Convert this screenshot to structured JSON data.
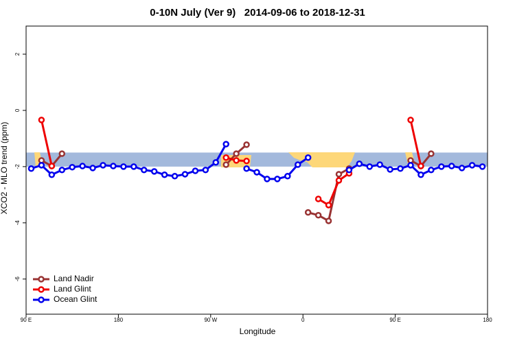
{
  "chart_data": {
    "type": "line",
    "title": "0-10N July (Ver 9)   2014-09-06 to 2018-12-31",
    "x_label": "Longitude",
    "y_label": "XCO2 - MLO trend (ppm)",
    "x": [
      95,
      105,
      115,
      125,
      135,
      145,
      155,
      165,
      175,
      185,
      195,
      205,
      215,
      225,
      235,
      245,
      255,
      265,
      275,
      285,
      295,
      305,
      315,
      325,
      335,
      345,
      355,
      365,
      375,
      385,
      395,
      405,
      415,
      425,
      435,
      445,
      455,
      465,
      475,
      485,
      495,
      505,
      515,
      525,
      535
    ],
    "xlim": [
      90,
      540
    ],
    "xticks": [
      {
        "value": 90,
        "label": "90 E"
      },
      180,
      {
        "value": 270,
        "label": "90 W"
      },
      {
        "value": 360,
        "label": "0"
      },
      {
        "value": 450,
        "label": "90 E"
      },
      {
        "value": 540,
        "label": "180"
      }
    ],
    "ylim": [
      -7.25,
      3
    ],
    "yticks": [
      2,
      0,
      -2,
      -4,
      -6
    ],
    "band": [
      -2,
      -1.5
    ],
    "band_color": "#a3b9dc",
    "legend": "bottom-left",
    "series": [
      {
        "name": "Land Nadir",
        "color": "#993333",
        "values": [
          null,
          -1.78,
          -1.98,
          -1.54,
          null,
          null,
          null,
          null,
          null,
          null,
          null,
          null,
          null,
          null,
          null,
          null,
          null,
          null,
          null,
          -1.93,
          -1.54,
          -1.22,
          null,
          null,
          null,
          null,
          null,
          -3.63,
          -3.73,
          -3.93,
          -2.27,
          -2.07,
          null,
          null,
          null,
          null,
          null,
          -1.78,
          -1.98,
          -1.54,
          null,
          null,
          null,
          null,
          null
        ]
      },
      {
        "name": "Land Glint",
        "color": "#ee0000",
        "values": [
          null,
          -0.34,
          -1.98,
          null,
          null,
          null,
          null,
          null,
          null,
          null,
          null,
          null,
          null,
          null,
          null,
          null,
          null,
          null,
          null,
          -1.68,
          -1.78,
          -1.8,
          null,
          null,
          null,
          null,
          null,
          null,
          -3.15,
          -3.37,
          -2.49,
          -2.24,
          null,
          null,
          null,
          null,
          null,
          -0.34,
          -1.98,
          null,
          null,
          null,
          null,
          null,
          null
        ]
      },
      {
        "name": "Ocean Glint",
        "color": "#0000ee",
        "values": [
          -2.07,
          -1.95,
          -2.29,
          -2.12,
          -2.02,
          -1.98,
          -2.05,
          -1.95,
          -1.98,
          -2.0,
          -2.0,
          -2.12,
          -2.17,
          -2.29,
          -2.34,
          -2.27,
          -2.15,
          -2.12,
          -1.85,
          -1.2,
          null,
          -2.07,
          -2.2,
          -2.44,
          -2.44,
          -2.34,
          -1.93,
          -1.68,
          null,
          null,
          null,
          -2.12,
          -1.9,
          -2.0,
          -1.93,
          -2.1,
          -2.07,
          -1.95,
          -2.29,
          -2.12,
          -2.0,
          -1.98,
          -2.05,
          -1.95,
          -2.0
        ]
      }
    ]
  }
}
